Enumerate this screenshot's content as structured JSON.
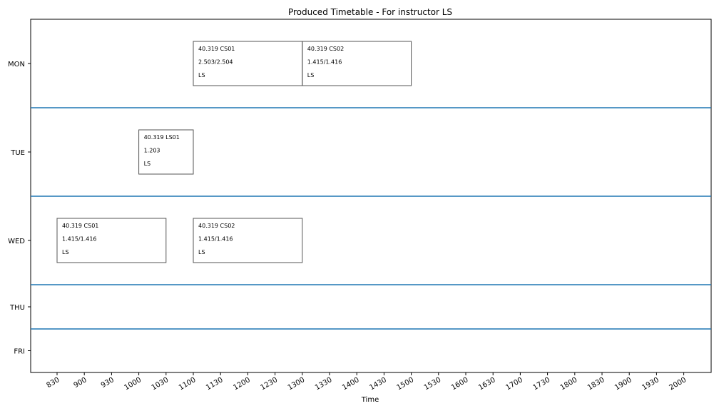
{
  "chart_data": {
    "type": "timetable",
    "title": "Produced Timetable - For instructor LS",
    "xlabel": "Time",
    "days": [
      "MON",
      "TUE",
      "WED",
      "THU",
      "FRI"
    ],
    "time_ticks": [
      "830",
      "900",
      "930",
      "1000",
      "1030",
      "1100",
      "1130",
      "1200",
      "1230",
      "1300",
      "1330",
      "1400",
      "1430",
      "1500",
      "1530",
      "1600",
      "1630",
      "1700",
      "1730",
      "1800",
      "1830",
      "1900",
      "1930",
      "2000"
    ],
    "events": [
      {
        "day": "MON",
        "start": "1100",
        "end": "1300",
        "code": "40.319 CS01",
        "room": "2.503/2.504",
        "instructor": "LS"
      },
      {
        "day": "MON",
        "start": "1300",
        "end": "1500",
        "code": "40.319 CS02",
        "room": "1.415/1.416",
        "instructor": "LS"
      },
      {
        "day": "TUE",
        "start": "1000",
        "end": "1100",
        "code": "40.319 LS01",
        "room": "1.203",
        "instructor": "LS"
      },
      {
        "day": "WED",
        "start": "830",
        "end": "1030",
        "code": "40.319 CS01",
        "room": "1.415/1.416",
        "instructor": "LS"
      },
      {
        "day": "WED",
        "start": "1100",
        "end": "1300",
        "code": "40.319 CS02",
        "room": "1.415/1.416",
        "instructor": "LS"
      }
    ],
    "grid": false,
    "colors": {
      "separator": "#1f77b4",
      "box_border": "#555555",
      "axis": "#000000"
    }
  }
}
